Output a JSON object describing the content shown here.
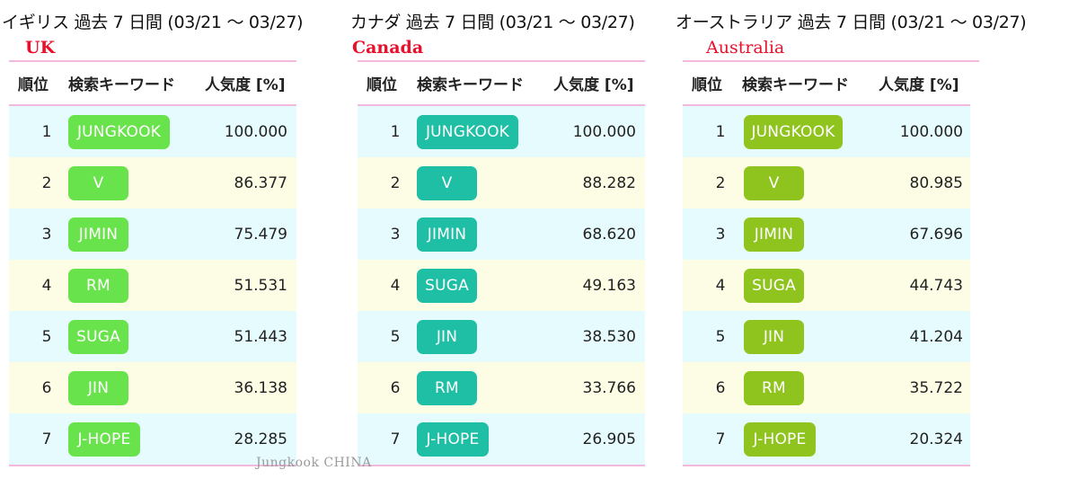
{
  "panels": [
    {
      "title": "イギリス 過去 7 日間 (03/21 〜 03/27)",
      "country": "UK",
      "chip_color": "#69e34b",
      "headers": {
        "rank": "順位",
        "keyword": "検索キーワード",
        "popularity": "人気度 [%]"
      },
      "rows": [
        {
          "rank": "1",
          "keyword": "JUNGKOOK",
          "value": "100.000"
        },
        {
          "rank": "2",
          "keyword": "V",
          "value": "86.377"
        },
        {
          "rank": "3",
          "keyword": "JIMIN",
          "value": "75.479"
        },
        {
          "rank": "4",
          "keyword": "RM",
          "value": "51.531"
        },
        {
          "rank": "5",
          "keyword": "SUGA",
          "value": "51.443"
        },
        {
          "rank": "6",
          "keyword": "JIN",
          "value": "36.138"
        },
        {
          "rank": "7",
          "keyword": "J-HOPE",
          "value": "28.285"
        }
      ]
    },
    {
      "title": "カナダ 過去 7 日間 (03/21 〜 03/27)",
      "country": "Canada",
      "chip_color": "#1fbfa5",
      "headers": {
        "rank": "順位",
        "keyword": "検索キーワード",
        "popularity": "人気度 [%]"
      },
      "rows": [
        {
          "rank": "1",
          "keyword": "JUNGKOOK",
          "value": "100.000"
        },
        {
          "rank": "2",
          "keyword": "V",
          "value": "88.282"
        },
        {
          "rank": "3",
          "keyword": "JIMIN",
          "value": "68.620"
        },
        {
          "rank": "4",
          "keyword": "SUGA",
          "value": "49.163"
        },
        {
          "rank": "5",
          "keyword": "JIN",
          "value": "38.530"
        },
        {
          "rank": "6",
          "keyword": "RM",
          "value": "33.766"
        },
        {
          "rank": "7",
          "keyword": "J-HOPE",
          "value": "26.905"
        }
      ]
    },
    {
      "title": "オーストラリア 過去 7 日間 (03/21 〜 03/27)",
      "country": "Australia",
      "chip_color": "#8fc41f",
      "headers": {
        "rank": "順位",
        "keyword": "検索キーワード",
        "popularity": "人気度 [%]"
      },
      "rows": [
        {
          "rank": "1",
          "keyword": "JUNGKOOK",
          "value": "100.000"
        },
        {
          "rank": "2",
          "keyword": "V",
          "value": "80.985"
        },
        {
          "rank": "3",
          "keyword": "JIMIN",
          "value": "67.696"
        },
        {
          "rank": "4",
          "keyword": "SUGA",
          "value": "44.743"
        },
        {
          "rank": "5",
          "keyword": "JIN",
          "value": "41.204"
        },
        {
          "rank": "6",
          "keyword": "RM",
          "value": "35.722"
        },
        {
          "rank": "7",
          "keyword": "J-HOPE",
          "value": "20.324"
        }
      ]
    }
  ],
  "watermark": "Jungkook CHINA"
}
